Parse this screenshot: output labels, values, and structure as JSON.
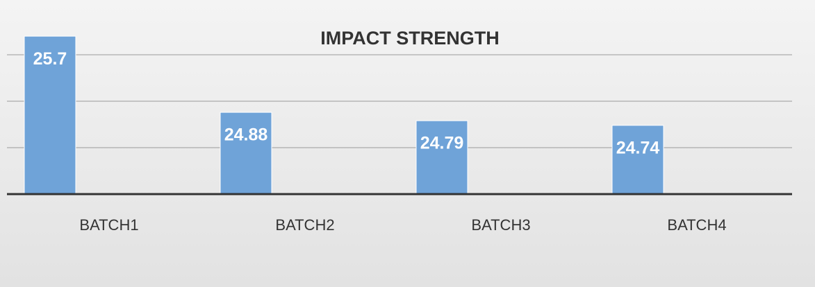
{
  "chart_data": {
    "type": "bar",
    "title": "IMPACT STRENGTH",
    "categories": [
      "BATCH1",
      "BATCH2",
      "BATCH3",
      "BATCH4"
    ],
    "values": [
      25.7,
      24.88,
      24.79,
      24.74
    ],
    "color": "#6fa3d8",
    "ylim": [
      24,
      26
    ],
    "yticks": [
      24.5,
      25,
      25.5
    ],
    "grid": true
  }
}
